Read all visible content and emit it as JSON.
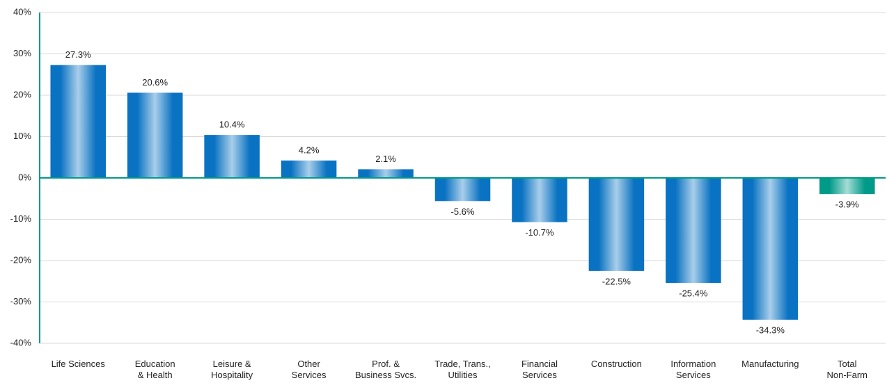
{
  "chart_data": {
    "type": "bar",
    "categories": [
      [
        "Life Sciences"
      ],
      [
        "Education",
        "& Health"
      ],
      [
        "Leisure &",
        "Hospitality"
      ],
      [
        "Other",
        "Services"
      ],
      [
        "Prof. &",
        "Business Svcs."
      ],
      [
        "Trade, Trans.,",
        "Utilities"
      ],
      [
        "Financial",
        "Services"
      ],
      [
        "Construction"
      ],
      [
        "Information",
        "Services"
      ],
      [
        "Manufacturing"
      ],
      [
        "Total",
        "Non-Farm"
      ]
    ],
    "values": [
      27.3,
      20.6,
      10.4,
      4.2,
      2.1,
      -5.6,
      -10.7,
      -22.5,
      -25.4,
      -34.3,
      -3.9
    ],
    "value_labels": [
      "27.3%",
      "20.6%",
      "10.4%",
      "4.2%",
      "2.1%",
      "-5.6%",
      "-10.7%",
      "-22.5%",
      "-25.4%",
      "-34.3%",
      "-3.9%"
    ],
    "colors": [
      "#0a72c2",
      "#0a72c2",
      "#0a72c2",
      "#0a72c2",
      "#0a72c2",
      "#0a72c2",
      "#0a72c2",
      "#0a72c2",
      "#0a72c2",
      "#0a72c2",
      "#009a88"
    ],
    "ylim": [
      -40,
      40
    ],
    "yticks": [
      {
        "value": -40,
        "label": "-40%"
      },
      {
        "value": -30,
        "label": "-30%"
      },
      {
        "value": -20,
        "label": "-20%"
      },
      {
        "value": -10,
        "label": "-10%"
      },
      {
        "value": 0,
        "label": "0%"
      },
      {
        "value": 10,
        "label": "10%"
      },
      {
        "value": 20,
        "label": "20%"
      },
      {
        "value": 30,
        "label": "30%"
      },
      {
        "value": 40,
        "label": "40%"
      }
    ],
    "grid": true
  }
}
